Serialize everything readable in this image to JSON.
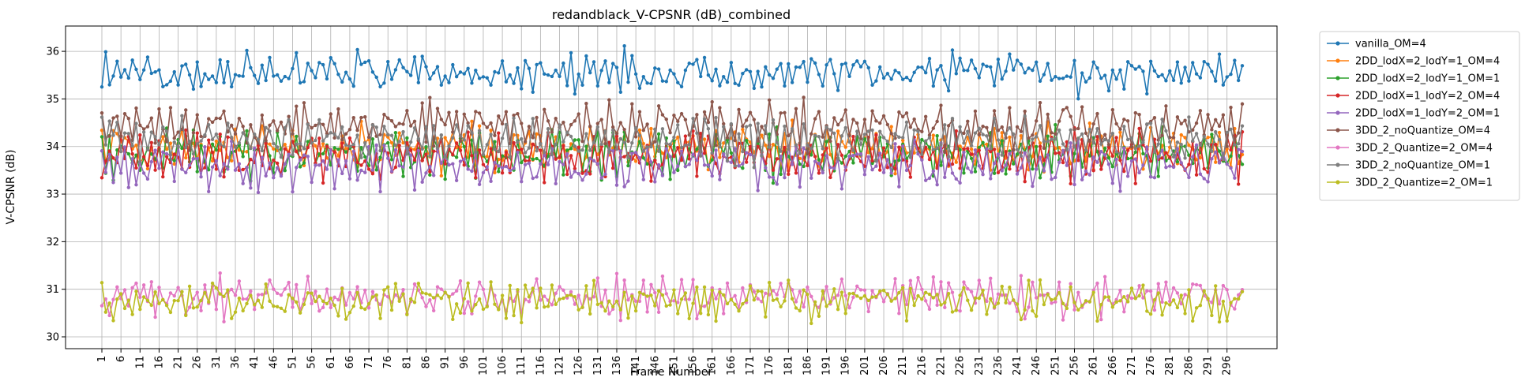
{
  "chart_data": {
    "type": "line",
    "title": "redandblack_V-CPSNR (dB)_combined",
    "xlabel": "Frame Number",
    "ylabel": "V-CPSNR (dB)",
    "xlim": [
      1,
      300
    ],
    "ylim": [
      30,
      36.3
    ],
    "yticks": [
      30,
      31,
      32,
      33,
      34,
      35,
      36
    ],
    "xticks": [
      1,
      6,
      11,
      16,
      21,
      26,
      31,
      36,
      41,
      46,
      51,
      56,
      61,
      66,
      71,
      76,
      81,
      86,
      91,
      96,
      101,
      106,
      111,
      116,
      121,
      126,
      131,
      136,
      141,
      146,
      151,
      156,
      161,
      166,
      171,
      176,
      181,
      186,
      191,
      196,
      201,
      206,
      211,
      216,
      221,
      226,
      231,
      236,
      241,
      246,
      251,
      256,
      261,
      266,
      271,
      276,
      281,
      286,
      291,
      296
    ],
    "grid": true,
    "legend_position": "outside-right",
    "series": [
      {
        "name": "vanilla_OM=4",
        "color": "#1f77b4",
        "base": 35.55,
        "amp": 0.32,
        "min": 34.95,
        "max": 36.12,
        "seed": 11
      },
      {
        "name": "2DD_lodX=2_lodY=1_OM=4",
        "color": "#ff7f0e",
        "base": 33.95,
        "amp": 0.38,
        "min": 33.1,
        "max": 35.0,
        "seed": 23
      },
      {
        "name": "2DD_lodX=2_lodY=1_OM=1",
        "color": "#2ca02c",
        "base": 33.85,
        "amp": 0.38,
        "min": 33.05,
        "max": 34.8,
        "seed": 37
      },
      {
        "name": "2DD_lodX=1_lodY=2_OM=4",
        "color": "#d62728",
        "base": 33.8,
        "amp": 0.38,
        "min": 33.0,
        "max": 34.6,
        "seed": 41
      },
      {
        "name": "2DD_lodX=1_lodY=2_OM=1",
        "color": "#9467bd",
        "base": 33.6,
        "amp": 0.4,
        "min": 32.9,
        "max": 34.3,
        "seed": 53
      },
      {
        "name": "3DD_2_noQuantize_OM=4",
        "color": "#8c564b",
        "base": 34.45,
        "amp": 0.38,
        "min": 33.6,
        "max": 35.1,
        "seed": 67
      },
      {
        "name": "3DD_2_Quantize=2_OM=4",
        "color": "#e377c2",
        "base": 30.85,
        "amp": 0.3,
        "min": 30.2,
        "max": 31.45,
        "seed": 71
      },
      {
        "name": "3DD_2_noQuantize_OM=1",
        "color": "#7f7f7f",
        "base": 34.15,
        "amp": 0.35,
        "min": 33.4,
        "max": 34.9,
        "seed": 83
      },
      {
        "name": "3DD_2_Quantize=2_OM=1",
        "color": "#bcbd22",
        "base": 30.75,
        "amp": 0.3,
        "min": 30.15,
        "max": 31.3,
        "seed": 97
      }
    ]
  }
}
